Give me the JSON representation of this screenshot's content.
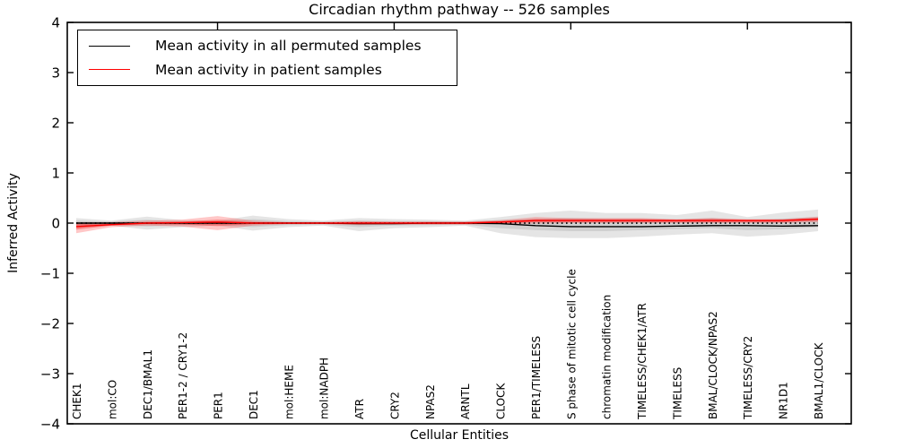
{
  "figure": {
    "title": "Circadian rhythm pathway -- 526 samples",
    "xlabel": "Cellular Entities",
    "ylabel": "Inferred Activity"
  },
  "chart_data": {
    "type": "line",
    "title": "Circadian rhythm pathway -- 526 samples",
    "xlabel": "Cellular Entities",
    "ylabel": "Inferred Activity",
    "ylim": [
      -4,
      4
    ],
    "yticks": [
      -4,
      -3,
      -2,
      -1,
      0,
      1,
      2,
      3,
      4
    ],
    "x_major_tick_indices": [
      4,
      9,
      14,
      19
    ],
    "grid": false,
    "legend_position": "upper left",
    "categories": [
      "CHEK1",
      "mol:CO",
      "DEC1/BMAL1",
      "PER1-2 / CRY1-2",
      "PER1",
      "DEC1",
      "mol:HEME",
      "mol:NADPH",
      "ATR",
      "CRY2",
      "NPAS2",
      "ARNTL",
      "CLOCK",
      "PER1/TIMELESS",
      "S phase of mitotic cell cycle",
      "chromatin modification",
      "TIMELESS/CHEK1/ATR",
      "TIMELESS",
      "BMAL/CLOCK/NPAS2",
      "TIMELESS/CRY2",
      "NR1D1",
      "BMAL1/CLOCK"
    ],
    "series": [
      {
        "name": "Mean activity in all permuted samples",
        "color": "#000000",
        "style": "solid",
        "values": [
          0,
          0,
          0,
          0,
          0,
          0,
          0,
          0,
          -0.01,
          -0.01,
          0,
          0,
          -0.01,
          -0.05,
          -0.07,
          -0.07,
          -0.07,
          -0.06,
          -0.05,
          -0.05,
          -0.06,
          -0.05
        ]
      },
      {
        "name": "Mean activity in patient samples",
        "color": "#ff0000",
        "style": "solid",
        "values": [
          -0.07,
          -0.03,
          0,
          0.01,
          0.02,
          0,
          0,
          0,
          0,
          0,
          0,
          0,
          0.02,
          0.05,
          0.05,
          0.05,
          0.05,
          0.05,
          0.05,
          0.05,
          0.05,
          0.08
        ]
      }
    ],
    "bands": [
      {
        "name": "permuted-band-outer",
        "color": "rgba(125,125,125,0.20)",
        "upper": [
          0.1,
          0.05,
          0.13,
          0.06,
          0.05,
          0.15,
          0.08,
          0.05,
          0.1,
          0.08,
          0.07,
          0.05,
          0.12,
          0.2,
          0.25,
          0.2,
          0.2,
          0.16,
          0.25,
          0.12,
          0.21,
          0.27
        ],
        "lower": [
          -0.1,
          -0.05,
          -0.13,
          -0.08,
          -0.05,
          -0.15,
          -0.08,
          -0.05,
          -0.16,
          -0.1,
          -0.08,
          -0.05,
          -0.2,
          -0.28,
          -0.3,
          -0.3,
          -0.27,
          -0.23,
          -0.2,
          -0.27,
          -0.23,
          -0.16
        ]
      },
      {
        "name": "permuted-band-inner",
        "color": "rgba(125,125,125,0.20)",
        "upper": [
          0.05,
          0.03,
          0.07,
          0.03,
          0.03,
          0.08,
          0.04,
          0.03,
          0.05,
          0.04,
          0.04,
          0.03,
          0.06,
          0.08,
          0.1,
          0.08,
          0.08,
          0.07,
          0.1,
          0.05,
          0.09,
          0.12
        ],
        "lower": [
          -0.05,
          -0.03,
          -0.07,
          -0.04,
          -0.03,
          -0.08,
          -0.04,
          -0.03,
          -0.08,
          -0.05,
          -0.04,
          -0.03,
          -0.1,
          -0.14,
          -0.16,
          -0.16,
          -0.14,
          -0.12,
          -0.1,
          -0.14,
          -0.12,
          -0.08
        ]
      },
      {
        "name": "patient-band-outer",
        "color": "rgba(255,0,0,0.22)",
        "upper": [
          0.02,
          0.02,
          0.05,
          0.07,
          0.14,
          0.05,
          0.02,
          0.02,
          0.04,
          0.03,
          0.03,
          0.03,
          0.06,
          0.12,
          0.1,
          0.1,
          0.1,
          0.08,
          0.1,
          0.08,
          0.08,
          0.13
        ],
        "lower": [
          -0.2,
          -0.08,
          -0.05,
          -0.07,
          -0.14,
          -0.05,
          -0.02,
          -0.02,
          -0.04,
          -0.03,
          -0.03,
          -0.03,
          -0.02,
          -0.01,
          0.0,
          0.0,
          0.0,
          0.0,
          0.0,
          0.0,
          0.0,
          0.02
        ]
      },
      {
        "name": "patient-band-inner",
        "color": "rgba(255,0,0,0.30)",
        "upper": [
          0.0,
          0.0,
          0.02,
          0.03,
          0.07,
          0.02,
          0.01,
          0.01,
          0.02,
          0.02,
          0.02,
          0.02,
          0.04,
          0.08,
          0.08,
          0.08,
          0.08,
          0.07,
          0.08,
          0.07,
          0.07,
          0.1
        ],
        "lower": [
          -0.13,
          -0.05,
          -0.02,
          -0.03,
          -0.06,
          -0.02,
          -0.01,
          -0.01,
          -0.02,
          -0.01,
          -0.01,
          -0.01,
          0.0,
          0.02,
          0.02,
          0.02,
          0.02,
          0.02,
          0.02,
          0.02,
          0.02,
          0.05
        ]
      }
    ],
    "reference_line": {
      "y": 0,
      "style": "dotted",
      "color": "#000000"
    }
  }
}
